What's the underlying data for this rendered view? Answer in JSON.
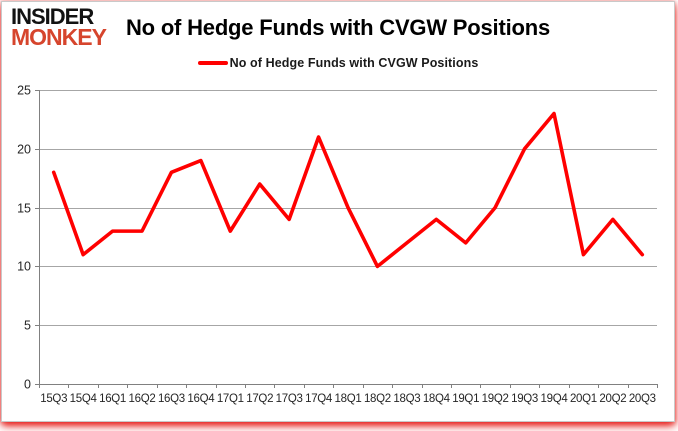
{
  "logo": {
    "line1": "INSIDER",
    "line2": "MONKEY",
    "color_line1": "#121212",
    "color_line2": "#d6452d"
  },
  "header": {
    "title": "No of Hedge Funds with CVGW Positions"
  },
  "chart_data": {
    "type": "line",
    "title": "No of Hedge Funds with CVGW Positions",
    "categories": [
      "15Q3",
      "15Q4",
      "16Q1",
      "16Q2",
      "16Q3",
      "16Q4",
      "17Q1",
      "17Q2",
      "17Q3",
      "17Q4",
      "18Q1",
      "18Q2",
      "18Q3",
      "18Q4",
      "19Q1",
      "19Q2",
      "19Q3",
      "19Q4",
      "20Q1",
      "20Q2",
      "20Q3"
    ],
    "series": [
      {
        "name": "No of Hedge Funds with CVGW Positions",
        "color": "#ff0000",
        "values": [
          18,
          11,
          13,
          13,
          18,
          19,
          13,
          17,
          14,
          21,
          15,
          10,
          12,
          14,
          12,
          15,
          20,
          23,
          11,
          14,
          11
        ]
      }
    ],
    "xlabel": "",
    "ylabel": "",
    "ylim": [
      0,
      25
    ],
    "yticks": [
      0,
      5,
      10,
      15,
      20,
      25
    ],
    "grid": true,
    "legend_position": "top-center"
  },
  "colors": {
    "line": "#ff0000",
    "gridline": "#a6a6a6",
    "axis": "#808080",
    "tick_text": "#262626",
    "card_background": "#ffffff",
    "glow": "#e40c08"
  }
}
